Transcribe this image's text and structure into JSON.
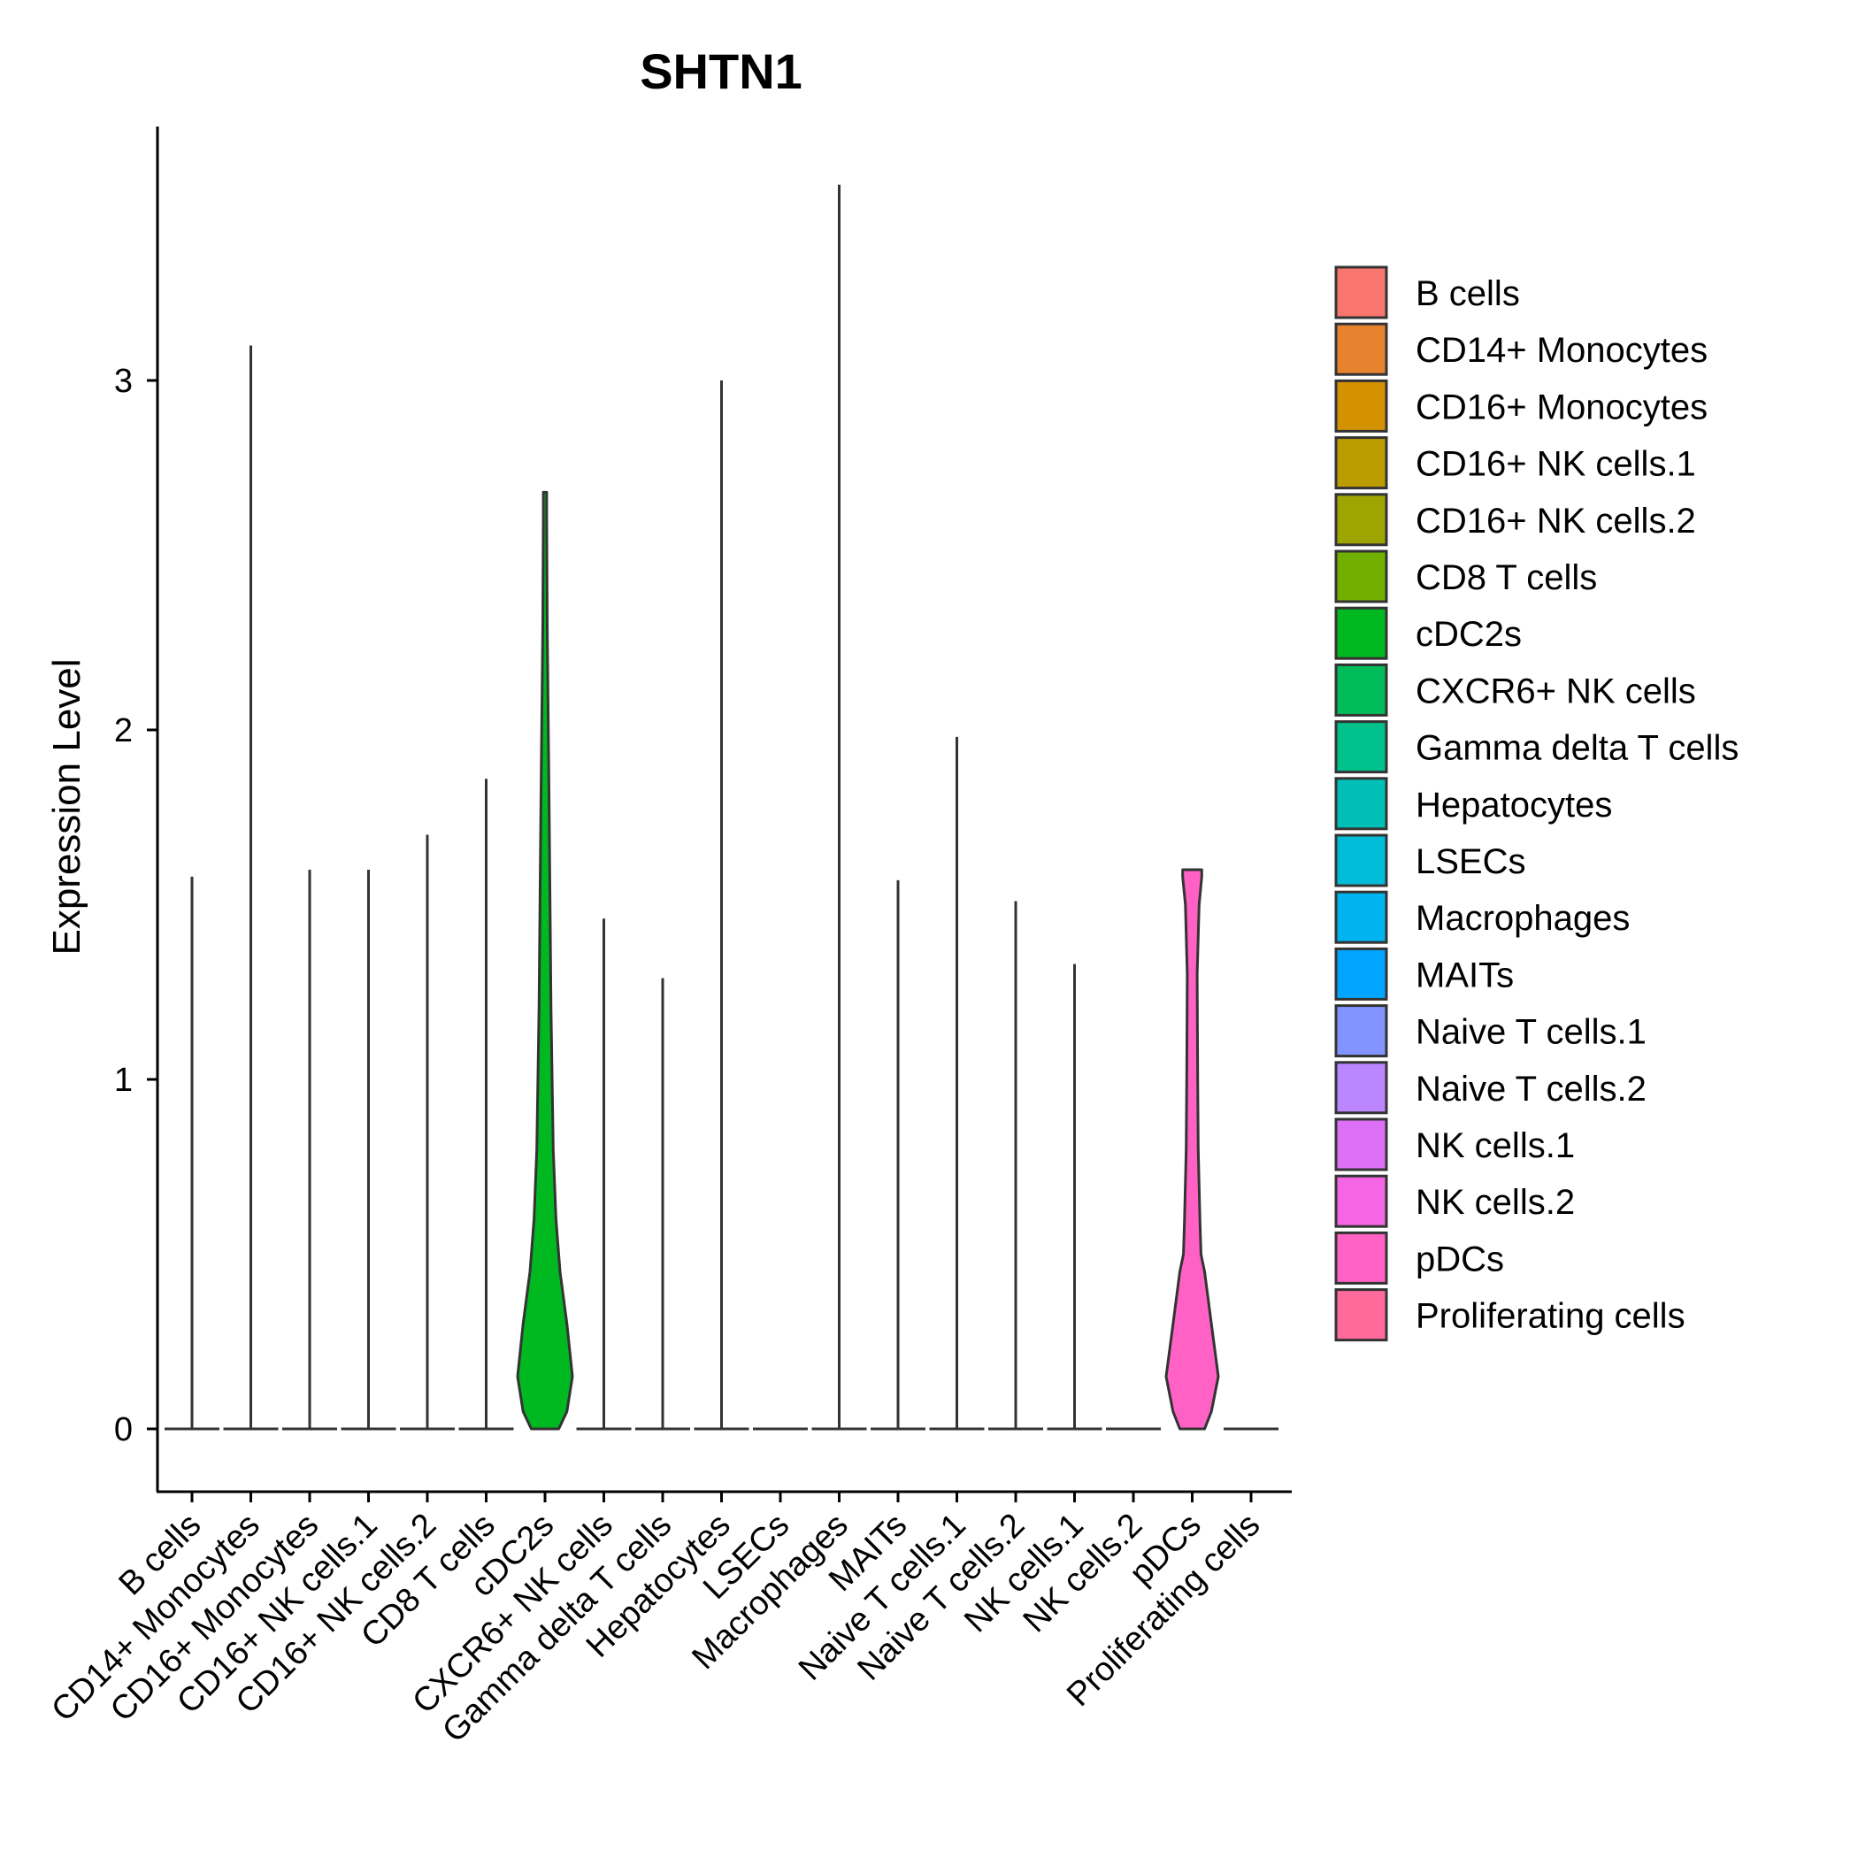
{
  "chart_data": {
    "type": "violin",
    "title": "SHTN1",
    "xlabel": "",
    "ylabel": "Expression Level",
    "ylim": [
      -0.18,
      3.65
    ],
    "yticks": [
      0,
      1,
      2,
      3
    ],
    "ytick_labels": [
      "0",
      "1",
      "2",
      "3"
    ],
    "legend_position": "right",
    "categories": [
      "B cells",
      "CD14+ Monocytes",
      "CD16+ Monocytes",
      "CD16+ NK cells.1",
      "CD16+ NK cells.2",
      "CD8 T cells",
      "cDC2s",
      "CXCR6+ NK cells",
      "Gamma delta T cells",
      "Hepatocytes",
      "LSECs",
      "Macrophages",
      "MAITs",
      "Naive T cells.1",
      "Naive T cells.2",
      "NK cells.1",
      "NK cells.2",
      "pDCs",
      "Proliferating cells"
    ],
    "max_expression": [
      1.58,
      3.1,
      1.6,
      1.6,
      1.7,
      1.86,
      2.68,
      1.46,
      1.29,
      3.0,
      0,
      3.56,
      1.57,
      1.98,
      1.51,
      1.33,
      0,
      1.6,
      0
    ],
    "colors": [
      "#F8766D",
      "#E58700",
      "#C99800",
      "#A3A500",
      "#6BB100",
      "#00BA38",
      "#00BF7D",
      "#00C0AF",
      "#00BCD8",
      "#00B0F6",
      "#619CFF",
      "#B983FF",
      "#E76BF3",
      "#FD61D1",
      "#FF67A4",
      "#F17D6F",
      "#D89000",
      "#FF61C3",
      "#FF6C91"
    ],
    "legend": [
      {
        "label": "B cells",
        "color": "#F8766D"
      },
      {
        "label": "CD14+ Monocytes",
        "color": "#E7832F"
      },
      {
        "label": "CD16+ Monocytes",
        "color": "#D49200"
      },
      {
        "label": "CD16+ NK cells.1",
        "color": "#BB9D00"
      },
      {
        "label": "CD16+ NK cells.2",
        "color": "#9FA500"
      },
      {
        "label": "CD8 T cells",
        "color": "#72B000"
      },
      {
        "label": "cDC2s",
        "color": "#00B81F"
      },
      {
        "label": "CXCR6+ NK cells",
        "color": "#00BC59"
      },
      {
        "label": "Gamma delta T cells",
        "color": "#00C08B"
      },
      {
        "label": "Hepatocytes",
        "color": "#00C0B5"
      },
      {
        "label": "LSECs",
        "color": "#00BCD8"
      },
      {
        "label": "Macrophages",
        "color": "#00B4EF"
      },
      {
        "label": "MAITs",
        "color": "#00A5FF"
      },
      {
        "label": "Naive T cells.1",
        "color": "#8194FF"
      },
      {
        "label": "Naive T cells.2",
        "color": "#BB86FF"
      },
      {
        "label": "NK cells.1",
        "color": "#DE70F7"
      },
      {
        "label": "NK cells.2",
        "color": "#F466E4"
      },
      {
        "label": "pDCs",
        "color": "#FF61C5"
      },
      {
        "label": "Proliferating cells",
        "color": "#FF6A9A"
      }
    ],
    "violin_shapes": {
      "cDC2s": {
        "profile": [
          [
            0,
            0.5
          ],
          [
            0.05,
            0.8
          ],
          [
            0.15,
            1.0
          ],
          [
            0.3,
            0.8
          ],
          [
            0.45,
            0.55
          ],
          [
            0.6,
            0.4
          ],
          [
            0.8,
            0.3
          ],
          [
            1.2,
            0.22
          ],
          [
            1.8,
            0.15
          ],
          [
            2.3,
            0.08
          ],
          [
            2.6,
            0.06
          ],
          [
            2.68,
            0.06
          ]
        ],
        "color": "#00B81F"
      },
      "pDCs": {
        "profile": [
          [
            0,
            0.45
          ],
          [
            0.05,
            0.7
          ],
          [
            0.15,
            0.95
          ],
          [
            0.3,
            0.7
          ],
          [
            0.45,
            0.45
          ],
          [
            0.5,
            0.32
          ],
          [
            0.6,
            0.28
          ],
          [
            0.8,
            0.22
          ],
          [
            1.0,
            0.2
          ],
          [
            1.3,
            0.18
          ],
          [
            1.5,
            0.25
          ],
          [
            1.58,
            0.35
          ],
          [
            1.6,
            0.35
          ]
        ],
        "color": "#FF61C5"
      }
    }
  }
}
